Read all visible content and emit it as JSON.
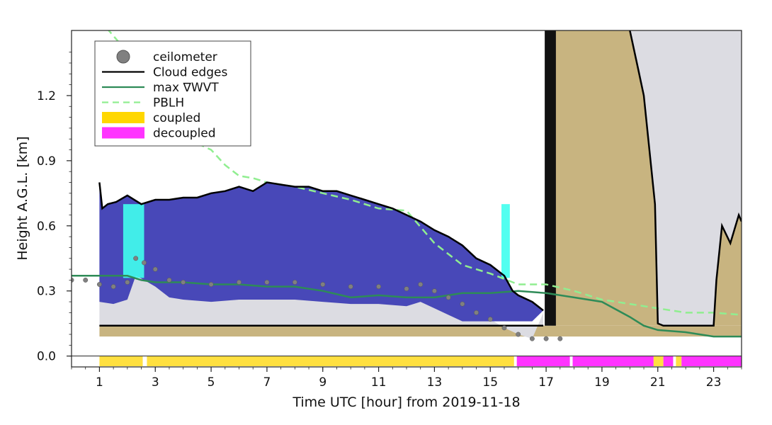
{
  "chart_data": {
    "type": "line",
    "xlabel": "Time UTC [hour] from 2019-11-18",
    "ylabel": "Height A.G.L. [km]",
    "xlim": [
      0,
      24
    ],
    "ylim": [
      -0.05,
      1.5
    ],
    "x_ticks": [
      1,
      3,
      5,
      7,
      9,
      11,
      13,
      15,
      17,
      19,
      21,
      23
    ],
    "y_ticks": [
      0.0,
      0.3,
      0.6,
      0.9,
      1.2
    ],
    "legend_position": "top-left",
    "legend": [
      {
        "label": "ceilometer",
        "style": "marker",
        "color": "#808080"
      },
      {
        "label": "Cloud edges",
        "style": "line",
        "color": "#000000"
      },
      {
        "label": "max ∇WVT",
        "style": "line",
        "color": "#2e8b57"
      },
      {
        "label": "PBLH",
        "style": "dashed",
        "color": "#90ee90"
      },
      {
        "label": "coupled",
        "style": "patch",
        "color": "#ffd700"
      },
      {
        "label": "decoupled",
        "style": "patch",
        "color": "#ff33ff"
      }
    ],
    "colors": {
      "cloud_fill": "#4848b8",
      "cloud_highlight": "#40ffee",
      "sub_cloud": "#dcdce2",
      "surface_band": "#c8b480",
      "precip_fill": "#c8b480",
      "cloud_edges": "#000000",
      "max_wvt": "#2e8b57",
      "pblh": "#90ee90",
      "ceilometer": "#808080",
      "coupled": "#ffe040",
      "decoupled": "#ff33ff"
    },
    "series": [
      {
        "name": "Cloud edges",
        "x": [
          1.0,
          1.1,
          1.3,
          1.6,
          2.0,
          2.5,
          3.0,
          3.5,
          4.0,
          4.5,
          5.0,
          5.5,
          6.0,
          6.5,
          7.0,
          7.5,
          8.0,
          8.5,
          9.0,
          9.5,
          10.0,
          10.5,
          11.0,
          11.5,
          12.0,
          12.5,
          13.0,
          13.5,
          14.0,
          14.5,
          15.0,
          15.5,
          15.8,
          16.0,
          16.5,
          16.9
        ],
        "y": [
          0.8,
          0.68,
          0.7,
          0.71,
          0.74,
          0.7,
          0.72,
          0.72,
          0.73,
          0.73,
          0.75,
          0.76,
          0.78,
          0.76,
          0.8,
          0.79,
          0.78,
          0.78,
          0.76,
          0.76,
          0.74,
          0.72,
          0.7,
          0.68,
          0.65,
          0.62,
          0.58,
          0.55,
          0.51,
          0.45,
          0.42,
          0.37,
          0.3,
          0.28,
          0.25,
          0.21
        ]
      },
      {
        "name": "Cloud edges (late)",
        "x": [
          20.0,
          20.3,
          20.5,
          20.7,
          20.9,
          21.0,
          21.2,
          22.0,
          23.0,
          23.1,
          23.3,
          23.6,
          23.9,
          24.0
        ],
        "y": [
          1.5,
          1.32,
          1.2,
          0.95,
          0.7,
          0.15,
          0.14,
          0.14,
          0.14,
          0.35,
          0.6,
          0.52,
          0.65,
          0.62
        ]
      },
      {
        "name": "Cloud base",
        "x": [
          1.0,
          16.9
        ],
        "y": [
          0.14,
          0.14
        ]
      },
      {
        "name": "max ∇WVT",
        "x": [
          0.0,
          1.0,
          2.0,
          2.5,
          3.0,
          4.0,
          5.0,
          6.0,
          7.0,
          8.0,
          9.0,
          10.0,
          11.0,
          12.0,
          13.0,
          14.0,
          15.0,
          16.0,
          17.0,
          18.0,
          19.0,
          20.0,
          20.5,
          21.0,
          22.0,
          23.0,
          24.0
        ],
        "y": [
          0.37,
          0.37,
          0.37,
          0.35,
          0.34,
          0.34,
          0.33,
          0.33,
          0.32,
          0.32,
          0.3,
          0.27,
          0.28,
          0.27,
          0.27,
          0.29,
          0.29,
          0.3,
          0.29,
          0.27,
          0.25,
          0.18,
          0.14,
          0.12,
          0.11,
          0.09,
          0.09
        ]
      },
      {
        "name": "PBLH",
        "x": [
          1.0,
          2.0,
          3.0,
          4.0,
          4.5,
          5.0,
          5.5,
          6.0,
          6.5,
          7.0,
          8.0,
          9.0,
          10.0,
          11.0,
          12.0,
          13.0,
          14.0,
          15.0,
          16.0,
          17.0,
          18.0,
          19.0,
          20.0,
          21.0,
          22.0,
          23.0,
          24.0
        ],
        "y": [
          1.55,
          1.4,
          1.25,
          1.1,
          0.98,
          0.95,
          0.88,
          0.83,
          0.82,
          0.8,
          0.78,
          0.75,
          0.72,
          0.68,
          0.67,
          0.52,
          0.42,
          0.38,
          0.33,
          0.33,
          0.3,
          0.26,
          0.24,
          0.22,
          0.2,
          0.2,
          0.19
        ]
      },
      {
        "name": "ceilometer",
        "x": [
          0.0,
          0.5,
          1.0,
          1.5,
          2.0,
          2.3,
          2.6,
          3.0,
          3.5,
          4.0,
          5.0,
          6.0,
          7.0,
          8.0,
          9.0,
          10.0,
          11.0,
          12.0,
          12.5,
          13.0,
          13.5,
          14.0,
          14.5,
          15.0,
          15.5,
          16.0,
          16.5,
          17.0,
          17.5
        ],
        "y": [
          0.35,
          0.35,
          0.33,
          0.32,
          0.34,
          0.45,
          0.43,
          0.4,
          0.35,
          0.34,
          0.33,
          0.34,
          0.34,
          0.34,
          0.33,
          0.32,
          0.32,
          0.31,
          0.33,
          0.3,
          0.27,
          0.24,
          0.2,
          0.17,
          0.13,
          0.1,
          0.08,
          0.08,
          0.08
        ]
      }
    ],
    "coupling": [
      {
        "state": "coupled",
        "start": 1.0,
        "end": 2.55
      },
      {
        "state": "coupled",
        "start": 2.7,
        "end": 15.85
      },
      {
        "state": "decoupled",
        "start": 15.95,
        "end": 17.85
      },
      {
        "state": "decoupled",
        "start": 17.95,
        "end": 20.85
      },
      {
        "state": "coupled",
        "start": 20.85,
        "end": 21.2
      },
      {
        "state": "decoupled",
        "start": 21.2,
        "end": 21.55
      },
      {
        "state": "coupled",
        "start": 21.65,
        "end": 21.85
      },
      {
        "state": "decoupled",
        "start": 21.85,
        "end": 24.0
      }
    ]
  }
}
